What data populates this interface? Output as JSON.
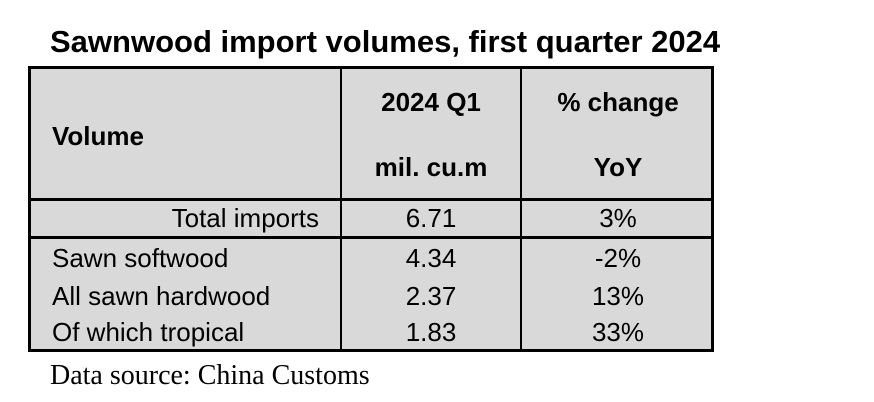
{
  "title": "Sawnwood import volumes, first quarter 2024",
  "table": {
    "header": [
      [
        "Volume"
      ],
      [
        "2024 Q1",
        "mil. cu.m"
      ],
      [
        "% change",
        "YoY"
      ]
    ],
    "rows": [
      [
        "Total imports",
        "6.71",
        "3%"
      ],
      [
        "Sawn softwood",
        "4.34",
        "-2%"
      ],
      [
        "All sawn hardwood",
        "2.37",
        "13%"
      ],
      [
        "Of which tropical",
        "1.83",
        "33%"
      ]
    ]
  },
  "source": "Data source: China Customs"
}
